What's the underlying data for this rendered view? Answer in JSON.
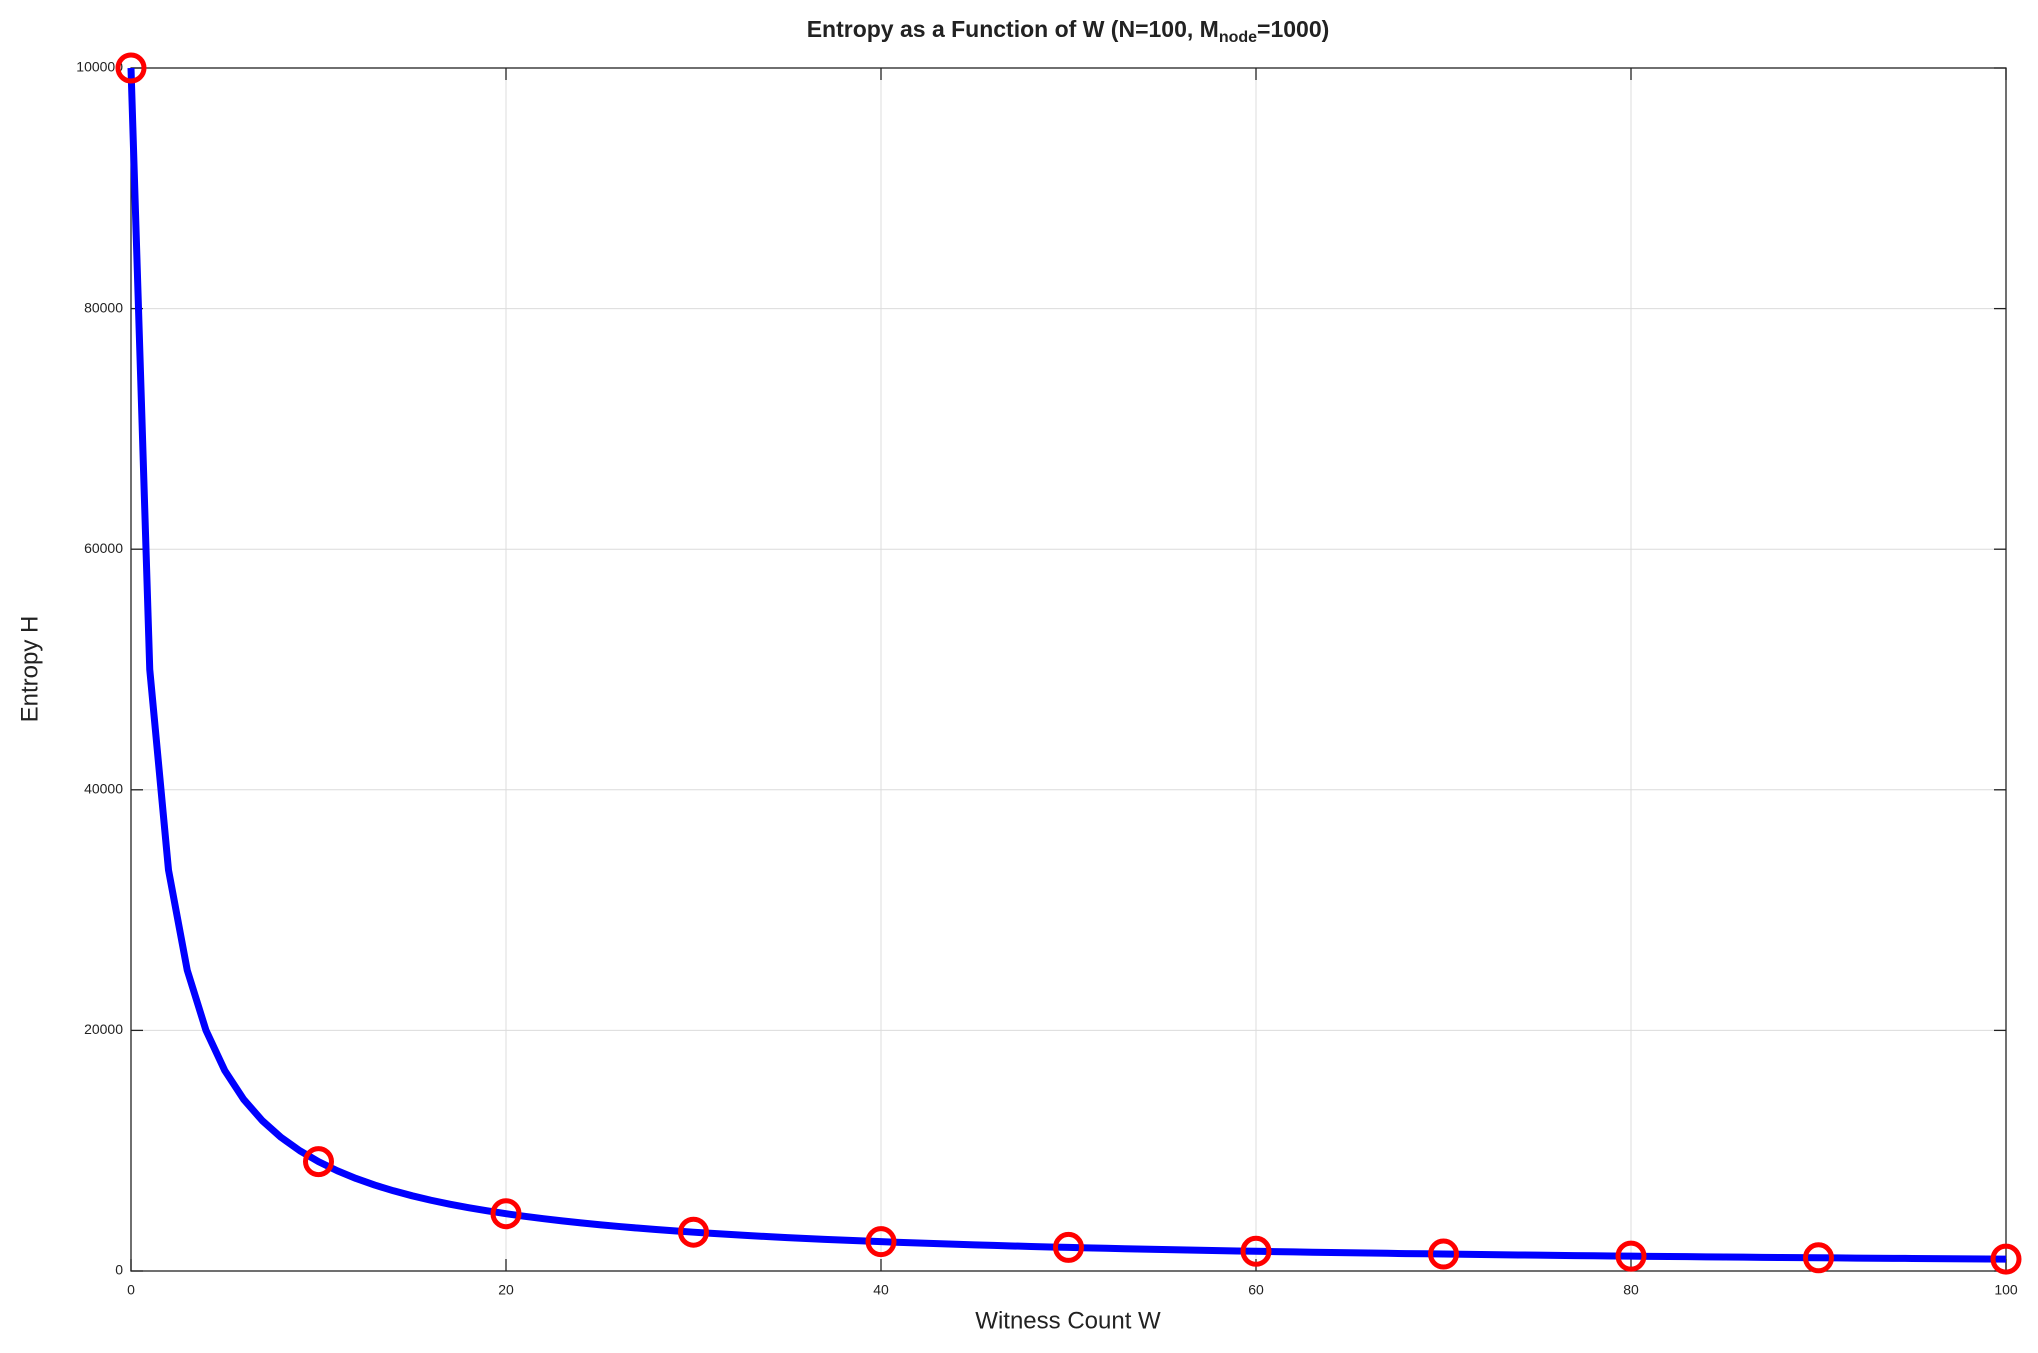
{
  "chart_data": {
    "type": "line",
    "title": [
      "Entropy as a Function of W (N=100, M",
      "node",
      "=1000)"
    ],
    "x_label": "Witness Count W",
    "y_label": "Entropy H",
    "xlim": [
      0,
      100
    ],
    "xticks": [
      0,
      20,
      40,
      60,
      80,
      100
    ],
    "ylim": [
      0,
      100000
    ],
    "yticks": [
      0,
      20000,
      40000,
      60000,
      80000,
      100000
    ],
    "grid": true,
    "series": [
      {
        "color": "#0000ff",
        "x": [
          0,
          1,
          2,
          3,
          4,
          5,
          6,
          7,
          8,
          9,
          10,
          11,
          12,
          13,
          14,
          15,
          16,
          17,
          18,
          19,
          20,
          21,
          22,
          23,
          24,
          25,
          26,
          27,
          28,
          29,
          30,
          31,
          32,
          33,
          34,
          35,
          36,
          37,
          38,
          39,
          40,
          41,
          42,
          43,
          44,
          45,
          46,
          47,
          48,
          49,
          50,
          51,
          52,
          53,
          54,
          55,
          56,
          57,
          58,
          59,
          60,
          61,
          62,
          63,
          64,
          65,
          66,
          67,
          68,
          69,
          70,
          71,
          72,
          73,
          74,
          75,
          76,
          77,
          78,
          79,
          80,
          81,
          82,
          83,
          84,
          85,
          86,
          87,
          88,
          89,
          90,
          91,
          92,
          93,
          94,
          95,
          96,
          97,
          98,
          99,
          100
        ],
        "values": [
          100000,
          50000,
          33333,
          25000,
          20000,
          16667,
          14286,
          12500,
          11111,
          10000,
          9091,
          8333,
          7692,
          7143,
          6667,
          6250,
          5882,
          5556,
          5263,
          5000,
          4762,
          4545,
          4348,
          4167,
          4000,
          3846,
          3704,
          3571,
          3448,
          3333,
          3226,
          3125,
          3030,
          2941,
          2857,
          2778,
          2703,
          2632,
          2564,
          2500,
          2439,
          2381,
          2326,
          2273,
          2222,
          2174,
          2128,
          2083,
          2041,
          2000,
          1961,
          1923,
          1887,
          1852,
          1818,
          1786,
          1754,
          1724,
          1695,
          1667,
          1639,
          1613,
          1587,
          1563,
          1538,
          1515,
          1493,
          1471,
          1449,
          1429,
          1408,
          1389,
          1370,
          1351,
          1333,
          1316,
          1299,
          1282,
          1266,
          1250,
          1235,
          1220,
          1205,
          1190,
          1176,
          1163,
          1149,
          1136,
          1124,
          1111,
          1099,
          1087,
          1075,
          1064,
          1053,
          1042,
          1031,
          1021,
          1010,
          1000,
          990
        ]
      },
      {
        "color": "#ff0000",
        "marker": "circle",
        "x": [
          0,
          10,
          20,
          30,
          40,
          50,
          60,
          70,
          80,
          90,
          100
        ],
        "values": [
          100000,
          9091,
          4762,
          3226,
          2439,
          1961,
          1639,
          1408,
          1235,
          1099,
          990
        ]
      }
    ]
  }
}
